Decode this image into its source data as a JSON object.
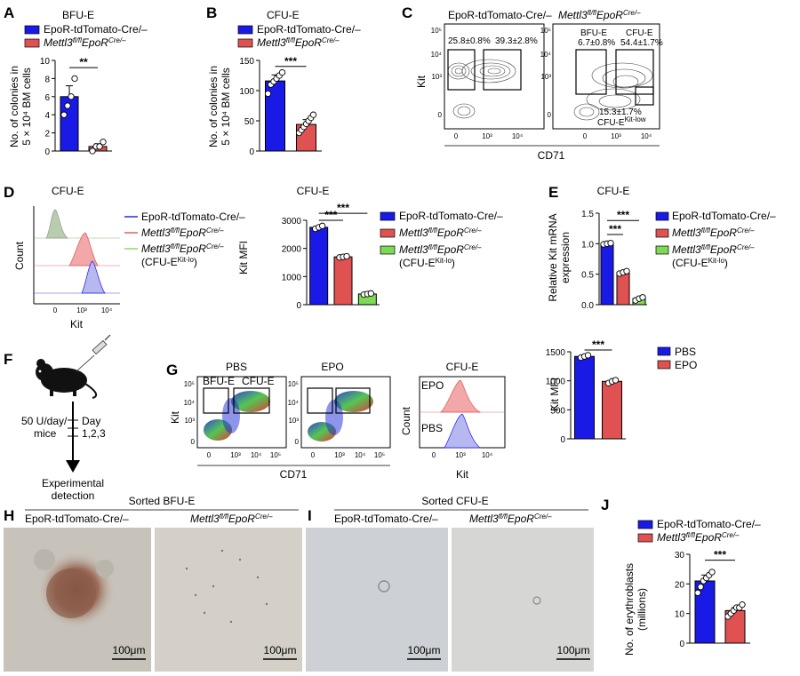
{
  "panels": {
    "A": "A",
    "B": "B",
    "C": "C",
    "D": "D",
    "E": "E",
    "F": "F",
    "G": "G",
    "H": "H",
    "I": "I",
    "J": "J"
  },
  "colors": {
    "ctrl": "#1a1ae6",
    "ko": "#e05252",
    "kit_lo": "#7ed957",
    "hist_ctrl": "#b8b8f0",
    "hist_ko": "#f2a8a8",
    "hist_lo": "#b9ccb0"
  },
  "legend": {
    "ctrl": "EpoR-tdTomato-Cre/–",
    "ko_gene": "Mettl3",
    "ko_gene_sup": "fl/fl",
    "ko_allele": "EpoR",
    "ko_allele_sup": "Cre/–",
    "kitlo_pre": "(CFU-E",
    "kitlo_sup": "Kit-lo",
    "kitlo_post": ")"
  },
  "sig": {
    "A": "**",
    "B": "***",
    "D1": "***",
    "D2": "***",
    "E1": "***",
    "E2": "***",
    "G": "***",
    "J": "***"
  },
  "panel_A": {
    "title": "BFU-E",
    "ylabel1": "No. of colonies in",
    "ylabel2": "5 × 10⁴ BM cells",
    "chart_data": {
      "type": "bar",
      "categories": [
        "EpoR-tdTomato-Cre/–",
        "Mettl3fl/fl EpoRCre/–"
      ],
      "values": [
        6,
        0.5
      ],
      "errors": [
        1.2,
        0.3
      ],
      "points": [
        [
          4,
          5,
          6,
          8
        ],
        [
          0,
          0.5,
          0.5,
          1
        ]
      ],
      "ylim": [
        0,
        10
      ],
      "yticks": [
        "0",
        "2",
        "4",
        "6",
        "8",
        "10"
      ]
    }
  },
  "panel_B": {
    "title": "CFU-E",
    "ylabel1": "No. of colonies in",
    "ylabel2": "5 × 10⁴ BM cells",
    "chart_data": {
      "type": "bar",
      "categories": [
        "EpoR-tdTomato-Cre/–",
        "Mettl3fl/fl EpoRCre/–"
      ],
      "values": [
        116,
        44
      ],
      "errors": [
        10,
        8
      ],
      "points": [
        [
          95,
          110,
          115,
          120,
          125,
          130
        ],
        [
          30,
          35,
          40,
          45,
          50,
          55,
          60
        ]
      ],
      "ylim": [
        0,
        150
      ],
      "yticks": [
        "0",
        "50",
        "100",
        "150"
      ]
    }
  },
  "panel_C": {
    "ctrl_title": "EpoR-tdTomato-Cre/–",
    "ylabel": "Kit",
    "xlabel": "CD71",
    "gate1": "25.8±0.8%",
    "gate2": "39.3±2.8%",
    "bfu": "BFU-E",
    "cfu": "CFU-E",
    "ko_gate1": "6.7±0.8%",
    "ko_gate2": "54.4±1.7%",
    "ko_gate3": "15.3±1.7%",
    "cfu_low": "CFU-E",
    "cfu_low_sup": "Kit-low",
    "yticks": [
      "10⁵",
      "10⁴",
      "10³",
      "0"
    ],
    "xticks": [
      "0",
      "10³",
      "10⁴"
    ]
  },
  "panel_D": {
    "title_hist": "CFU-E",
    "ylabel": "Count",
    "xlabel": "Kit",
    "xticks": [
      "0",
      "10³",
      "10⁴"
    ],
    "title_bar": "CFU-E",
    "bar_ylabel": "Kit MFI",
    "chart_data": {
      "type": "bar",
      "categories": [
        "EpoR-tdTomato-Cre/–",
        "Mettl3fl/fl EpoRCre/–",
        "Mettl3fl/fl EpoRCre/– (CFU-E Kit-lo)"
      ],
      "values": [
        2750,
        1700,
        380
      ],
      "points": [
        [
          2700,
          2750,
          2800
        ],
        [
          1680,
          1700,
          1720
        ],
        [
          360,
          380,
          400
        ]
      ],
      "ylim": [
        0,
        3000
      ],
      "yticks": [
        "0",
        "1000",
        "2000",
        "3000"
      ]
    }
  },
  "panel_E": {
    "title": "CFU-E",
    "ylabel1": "Relative Kit mRNA",
    "ylabel2": "expression",
    "chart_data": {
      "type": "bar",
      "categories": [
        "EpoR-tdTomato-Cre/–",
        "Mettl3fl/fl EpoRCre/–",
        "Mettl3fl/fl EpoRCre/– (CFU-E Kit-lo)"
      ],
      "values": [
        1.0,
        0.53,
        0.1
      ],
      "points": [
        [
          0.99,
          1.0,
          1.01
        ],
        [
          0.51,
          0.53,
          0.55
        ],
        [
          0.07,
          0.1,
          0.12
        ]
      ],
      "ylim": [
        0,
        1.5
      ],
      "yticks": [
        "0.0",
        "0.5",
        "1.0",
        "1.5"
      ]
    }
  },
  "panel_F": {
    "dose1": "50 U/day/",
    "dose2": "mice",
    "day1": "Day",
    "day2": "1,2,3",
    "outcome1": "Experimental",
    "outcome2": "detection"
  },
  "panel_G": {
    "pbs": "PBS",
    "epo": "EPO",
    "bfu": "BFU-E",
    "cfu": "CFU-E",
    "ylabel": "Kit",
    "xlabel": "CD71",
    "yticks": [
      "10⁵",
      "10⁴",
      "10³",
      "0"
    ],
    "xticks": [
      "0",
      "10³",
      "10⁴",
      "10⁵"
    ],
    "hist_title": "CFU-E",
    "hist_ylabel": "Count",
    "hist_xlabel": "Kit",
    "hist_xticks": [
      "0",
      "10³",
      "10⁴"
    ],
    "bar_ylabel": "Kit MFI",
    "legend_pbs": "PBS",
    "legend_epo": "EPO",
    "chart_data": {
      "type": "bar",
      "categories": [
        "PBS",
        "EPO"
      ],
      "values": [
        1420,
        990
      ],
      "points": [
        [
          1400,
          1420,
          1440
        ],
        [
          960,
          990,
          1010
        ]
      ],
      "ylim": [
        0,
        1500
      ],
      "yticks": [
        "0",
        "500",
        "1000",
        "1500"
      ]
    }
  },
  "panel_H": {
    "title": "Sorted BFU-E",
    "scale": "100μm"
  },
  "panel_I": {
    "title": "Sorted CFU-E",
    "scale": "100μm"
  },
  "panel_J": {
    "ylabel1": "No. of erythroblasts",
    "ylabel2": "(millions)",
    "chart_data": {
      "type": "bar",
      "categories": [
        "EpoR-tdTomato-Cre/–",
        "Mettl3fl/fl EpoRCre/–"
      ],
      "values": [
        21,
        11
      ],
      "errors": [
        2,
        1
      ],
      "points": [
        [
          17,
          19,
          21,
          22,
          23,
          24
        ],
        [
          9,
          10,
          11,
          12,
          12,
          13
        ]
      ],
      "ylim": [
        0,
        30
      ],
      "yticks": [
        "0",
        "10",
        "20",
        "30"
      ]
    }
  }
}
